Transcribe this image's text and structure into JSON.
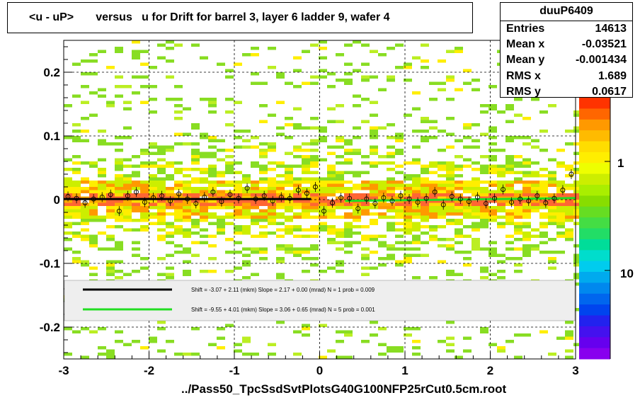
{
  "title": "<u - uP>       versus   u for Drift for barrel 3, layer 6 ladder 9, wafer 4",
  "footer": "../Pass50_TpcSsdSvtPlotsG40G100NFP25rCut0.5cm.root",
  "stats": {
    "name": "duuP6409",
    "rows": [
      {
        "label": "Entries",
        "value": "14613"
      },
      {
        "label": "Mean x",
        "value": "-0.03521"
      },
      {
        "label": "Mean y",
        "value": "-0.001434"
      },
      {
        "label": "RMS x",
        "value": "1.689"
      },
      {
        "label": "RMS y",
        "value": "0.0617"
      }
    ]
  },
  "legend": {
    "entries": [
      {
        "color": "#000000",
        "text": "Shift =    -3.07 + 2.11 (mkm) Slope =    2.17 + 0.00 (mrad)  N = 1 prob = 0.009"
      },
      {
        "color": "#22dd22",
        "text": "Shift =    -9.55 + 4.01 (mkm) Slope =    3.06 + 0.65 (mrad)  N = 5 prob = 0.001"
      }
    ]
  },
  "palette_labels": [
    "1",
    "10"
  ],
  "chart_data": {
    "type": "heatmap",
    "title": "<u - uP>       versus   u for Drift for barrel 3, layer 6 ladder 9, wafer 4",
    "xlim": [
      -3,
      3
    ],
    "ylim": [
      -0.25,
      0.25
    ],
    "x_ticks": [
      -3,
      -2,
      -1,
      0,
      1,
      2,
      3
    ],
    "y_ticks": [
      -0.2,
      -0.1,
      0,
      0.1,
      0.2
    ],
    "x_tick_labels": [
      "-3",
      "-2",
      "-1",
      "0",
      "1",
      "2",
      "3"
    ],
    "y_tick_labels": [
      "-0.2",
      "-0.1",
      "0",
      "0.1",
      "0.2"
    ],
    "grid": true,
    "profile_points": {
      "x": [
        -2.95,
        -2.85,
        -2.75,
        -2.65,
        -2.55,
        -2.45,
        -2.35,
        -2.25,
        -2.15,
        -2.05,
        -1.95,
        -1.85,
        -1.75,
        -1.65,
        -1.55,
        -1.45,
        -1.35,
        -1.25,
        -1.15,
        -1.05,
        -0.95,
        -0.85,
        -0.75,
        -0.65,
        -0.55,
        -0.45,
        -0.35,
        -0.25,
        -0.15,
        -0.05,
        0.05,
        0.15,
        0.25,
        0.35,
        0.45,
        0.55,
        0.65,
        0.75,
        0.85,
        0.95,
        1.05,
        1.15,
        1.25,
        1.35,
        1.45,
        1.55,
        1.65,
        1.75,
        1.85,
        1.95,
        2.05,
        2.15,
        2.25,
        2.35,
        2.45,
        2.55,
        2.65,
        2.75,
        2.85,
        2.95
      ],
      "y": [
        0.005,
        0.002,
        -0.005,
        0.001,
        0.004,
        0.008,
        -0.018,
        0.006,
        0.012,
        -0.004,
        0.003,
        0.006,
        -0.002,
        0.009,
        0.001,
        -0.006,
        0.004,
        0.012,
        -0.003,
        0.008,
        0.002,
        0.018,
        0.001,
        0.006,
        -0.002,
        0.004,
        0.002,
        0.015,
        0.01,
        0.02,
        -0.018,
        -0.005,
        0.003,
        0.002,
        -0.014,
        0.001,
        -0.006,
        0.003,
        -0.002,
        0.006,
        0.001,
        -0.004,
        0.002,
        0.012,
        -0.008,
        0.005,
        0.001,
        -0.003,
        0.004,
        -0.006,
        0.002,
        0.016,
        -0.004,
        0.001,
        -0.002,
        0.006,
        -0.005,
        0.002,
        0.015,
        0.04
      ]
    },
    "fits": [
      {
        "color": "#000000",
        "x": [
          -3,
          -0.1
        ],
        "y": [
          0.001,
          0.001
        ]
      },
      {
        "color": "#22dd22",
        "x": [
          0.3,
          3
        ],
        "y": [
          -0.002,
          0.0025
        ]
      }
    ],
    "colorbar_labels": [
      "1",
      "10"
    ]
  }
}
